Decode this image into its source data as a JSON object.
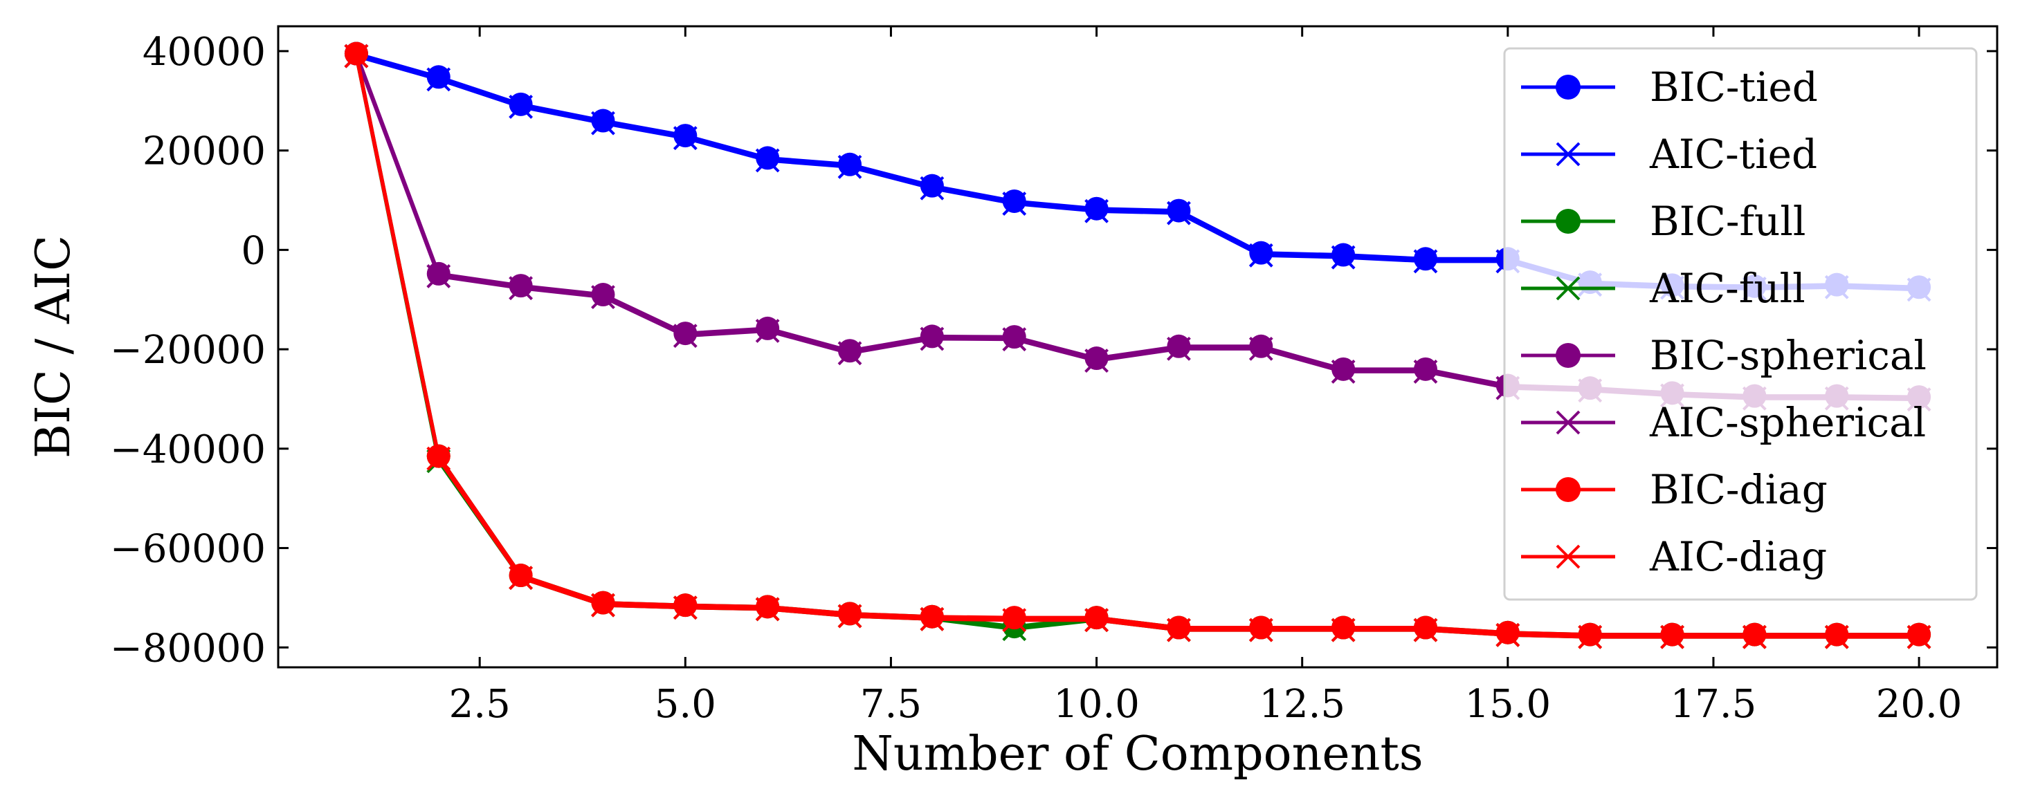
{
  "chart_data": {
    "type": "line",
    "xlabel": "Number of Components",
    "ylabel": "BIC / AIC",
    "xlim": [
      0.05,
      20.95
    ],
    "ylim": [
      -84000,
      45000
    ],
    "x_ticks": [
      2.5,
      5.0,
      7.5,
      10.0,
      12.5,
      15.0,
      17.5,
      20.0
    ],
    "x_tick_labels": [
      "2.5",
      "5.0",
      "7.5",
      "10.0",
      "12.5",
      "15.0",
      "17.5",
      "20.0"
    ],
    "y_ticks": [
      40000,
      20000,
      0,
      -20000,
      -40000,
      -60000,
      -80000
    ],
    "y_tick_labels": [
      "40000",
      "20000",
      "0",
      "−20000",
      "−40000",
      "−60000",
      "−80000"
    ],
    "legend_position": "upper right",
    "x": [
      1,
      2,
      3,
      4,
      5,
      6,
      7,
      8,
      9,
      10,
      11,
      12,
      13,
      14,
      15,
      16,
      17,
      18,
      19,
      20
    ],
    "series": [
      {
        "name": "BIC-tied",
        "color": "#0000ff",
        "marker": "circle",
        "values": [
          39500,
          34800,
          29300,
          26000,
          23000,
          18500,
          17200,
          12900,
          9800,
          8300,
          7900,
          -600,
          -1000,
          -1800,
          -1800,
          -6500,
          -7100,
          -7300,
          -7000,
          -7500
        ]
      },
      {
        "name": "AIC-tied",
        "color": "#0000ff",
        "marker": "x",
        "values": [
          39000,
          34300,
          28800,
          25500,
          22500,
          18000,
          16700,
          12400,
          9300,
          7800,
          7400,
          -1100,
          -1500,
          -2300,
          -2300,
          -7000,
          -7600,
          -7800,
          -7500,
          -8000
        ]
      },
      {
        "name": "BIC-full",
        "color": "#008000",
        "marker": "circle",
        "values": [
          39500,
          -41500,
          -65500,
          -71000,
          -71500,
          -71800,
          -73200,
          -73800,
          -75800,
          -74000,
          -76000,
          -76000,
          -76000,
          -76000,
          -77000,
          -77400,
          -77400,
          -77400,
          -77400,
          -77400
        ]
      },
      {
        "name": "AIC-full",
        "color": "#008000",
        "marker": "x",
        "values": [
          39000,
          -42500,
          -66000,
          -71500,
          -72000,
          -72300,
          -73700,
          -74300,
          -76300,
          -74500,
          -76500,
          -76500,
          -76500,
          -76500,
          -77500,
          -77900,
          -77900,
          -77900,
          -77900,
          -77900
        ]
      },
      {
        "name": "BIC-spherical",
        "color": "#800080",
        "marker": "circle",
        "values": [
          39500,
          -4800,
          -7200,
          -9000,
          -16800,
          -15800,
          -20300,
          -17400,
          -17500,
          -21800,
          -19400,
          -19400,
          -24000,
          -24000,
          -27300,
          -27800,
          -28800,
          -29400,
          -29400,
          -29600
        ]
      },
      {
        "name": "AIC-spherical",
        "color": "#800080",
        "marker": "x",
        "values": [
          39000,
          -5300,
          -7700,
          -9500,
          -17300,
          -16300,
          -20800,
          -17900,
          -18000,
          -22300,
          -19900,
          -19900,
          -24500,
          -24500,
          -27800,
          -28300,
          -29300,
          -29900,
          -29900,
          -30100
        ]
      },
      {
        "name": "BIC-diag",
        "color": "#ff0000",
        "marker": "circle",
        "values": [
          39500,
          -41500,
          -65500,
          -71000,
          -71500,
          -71800,
          -73200,
          -73800,
          -74000,
          -74000,
          -76000,
          -76000,
          -76000,
          -76000,
          -77000,
          -77400,
          -77400,
          -77400,
          -77400,
          -77400
        ]
      },
      {
        "name": "AIC-diag",
        "color": "#ff0000",
        "marker": "x",
        "values": [
          39000,
          -42000,
          -66000,
          -71500,
          -72000,
          -72300,
          -73700,
          -74300,
          -74500,
          -74500,
          -76500,
          -76500,
          -76500,
          -76500,
          -77500,
          -77900,
          -77900,
          -77900,
          -77900,
          -77900
        ]
      }
    ]
  }
}
